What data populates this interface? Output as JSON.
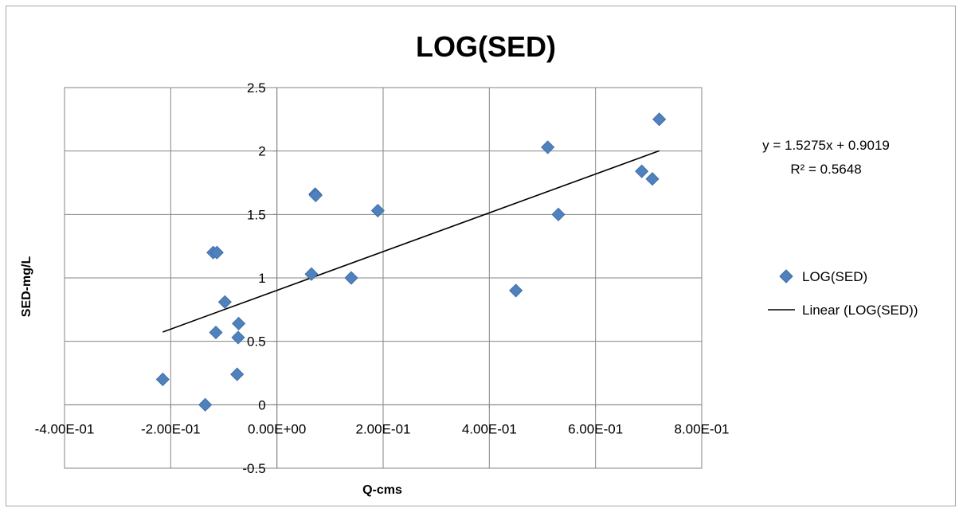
{
  "chart_data": {
    "type": "scatter",
    "title": "LOG(SED)",
    "xlabel": "Q-cms",
    "ylabel": "SED-mg/L",
    "xlim": [
      -0.4,
      0.8
    ],
    "ylim": [
      -0.5,
      2.5
    ],
    "x_ticks": [
      {
        "value": -0.4,
        "label": "-4.00E-01"
      },
      {
        "value": -0.2,
        "label": "-2.00E-01"
      },
      {
        "value": 0.0,
        "label": "0.00E+00"
      },
      {
        "value": 0.2,
        "label": "2.00E-01"
      },
      {
        "value": 0.4,
        "label": "4.00E-01"
      },
      {
        "value": 0.6,
        "label": "6.00E-01"
      },
      {
        "value": 0.8,
        "label": "8.00E-01"
      }
    ],
    "y_ticks": [
      {
        "value": -0.5,
        "label": "-0.5"
      },
      {
        "value": 0,
        "label": "0"
      },
      {
        "value": 0.5,
        "label": "0.5"
      },
      {
        "value": 1,
        "label": "1"
      },
      {
        "value": 1.5,
        "label": "1.5"
      },
      {
        "value": 2,
        "label": "2"
      },
      {
        "value": 2.5,
        "label": "2.5"
      }
    ],
    "grid": true,
    "legend_position": "right",
    "series": [
      {
        "name": "LOG(SED)",
        "marker": "diamond",
        "color": "#4f81bd",
        "points": [
          {
            "x": -0.215,
            "y": 0.2
          },
          {
            "x": -0.135,
            "y": 0.0
          },
          {
            "x": -0.12,
            "y": 1.2
          },
          {
            "x": -0.113,
            "y": 1.2
          },
          {
            "x": -0.115,
            "y": 0.57
          },
          {
            "x": -0.098,
            "y": 0.81
          },
          {
            "x": -0.072,
            "y": 0.64
          },
          {
            "x": -0.073,
            "y": 0.53
          },
          {
            "x": -0.075,
            "y": 0.24
          },
          {
            "x": 0.065,
            "y": 1.03
          },
          {
            "x": 0.072,
            "y": 1.66
          },
          {
            "x": 0.073,
            "y": 1.65
          },
          {
            "x": 0.14,
            "y": 1.0
          },
          {
            "x": 0.19,
            "y": 1.53
          },
          {
            "x": 0.45,
            "y": 0.9
          },
          {
            "x": 0.51,
            "y": 2.03
          },
          {
            "x": 0.53,
            "y": 1.5
          },
          {
            "x": 0.687,
            "y": 1.84
          },
          {
            "x": 0.707,
            "y": 1.78
          },
          {
            "x": 0.72,
            "y": 2.25
          }
        ]
      },
      {
        "name": "Linear (LOG(SED))",
        "type": "trendline",
        "color": "#000000",
        "slope": 1.5275,
        "intercept": 0.9019,
        "x_range": [
          -0.215,
          0.72
        ]
      }
    ],
    "trendline_equation": "y = 1.5275x + 0.9019",
    "r_squared": "R² = 0.5648"
  }
}
